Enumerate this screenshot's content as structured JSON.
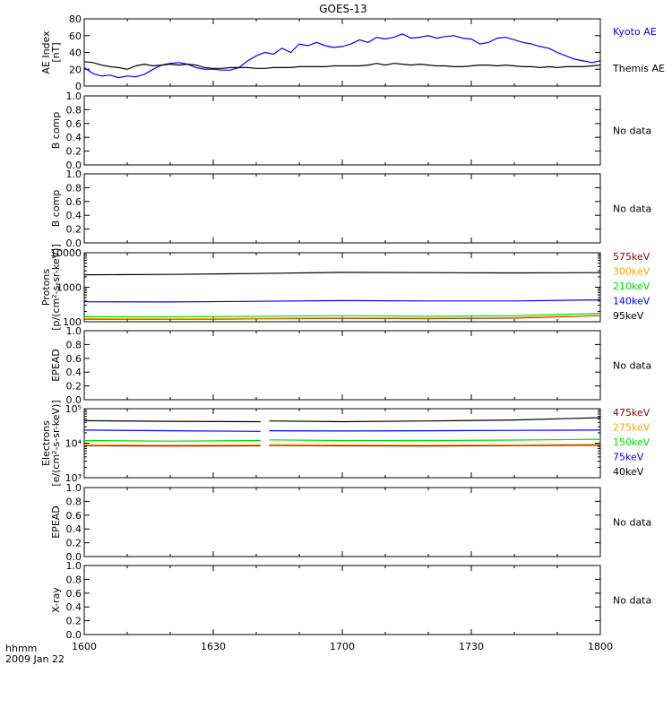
{
  "title": "GOES-13",
  "footer": {
    "label1": "hhmm",
    "label2": "2009 Jan 22"
  },
  "x_axis": {
    "ticks": [
      {
        "t": 0,
        "label": "1600"
      },
      {
        "t": 30,
        "label": "1630"
      },
      {
        "t": 60,
        "label": "1700"
      },
      {
        "t": 90,
        "label": "1730"
      },
      {
        "t": 120,
        "label": "1800"
      }
    ],
    "range_minutes": [
      0,
      120
    ]
  },
  "chart_data": [
    {
      "type": "line",
      "ylabel": [
        "AE Index",
        "[nT]"
      ],
      "ylim": [
        0,
        80
      ],
      "yticks": [
        0,
        20,
        40,
        60,
        80
      ],
      "ytick_labels": [
        "0",
        "20",
        "40",
        "60",
        "80"
      ],
      "x_minutes": [
        0,
        2,
        4,
        6,
        8,
        10,
        12,
        14,
        16,
        18,
        20,
        22,
        24,
        26,
        28,
        30,
        32,
        34,
        36,
        38,
        40,
        42,
        44,
        46,
        48,
        50,
        52,
        54,
        56,
        58,
        60,
        62,
        64,
        66,
        68,
        70,
        72,
        74,
        76,
        78,
        80,
        82,
        84,
        86,
        88,
        90,
        92,
        94,
        96,
        98,
        100,
        102,
        104,
        106,
        108,
        110,
        112,
        114,
        116,
        118,
        120
      ],
      "series": [
        {
          "name": "Kyoto AE",
          "color": "#0000ff",
          "values": [
            22,
            15,
            12,
            13,
            10,
            12,
            11,
            14,
            20,
            25,
            27,
            28,
            26,
            22,
            20,
            20,
            19,
            19,
            22,
            30,
            36,
            40,
            38,
            45,
            40,
            50,
            48,
            52,
            48,
            46,
            47,
            50,
            55,
            52,
            58,
            56,
            58,
            62,
            57,
            58,
            60,
            57,
            59,
            60,
            57,
            56,
            50,
            52,
            57,
            58,
            55,
            52,
            50,
            47,
            45,
            40,
            36,
            32,
            30,
            28,
            30
          ]
        },
        {
          "name": "Themis AE",
          "color": "#000000",
          "values": [
            29,
            28,
            25,
            23,
            22,
            20,
            24,
            26,
            24,
            25,
            26,
            25,
            26,
            25,
            22,
            21,
            21,
            22,
            22,
            22,
            21,
            21,
            22,
            22,
            22,
            23,
            23,
            23,
            23,
            24,
            24,
            24,
            24,
            25,
            27,
            25,
            27,
            26,
            25,
            26,
            25,
            24,
            24,
            23,
            23,
            24,
            25,
            25,
            24,
            25,
            24,
            23,
            23,
            22,
            23,
            22,
            23,
            23,
            23,
            24,
            25
          ]
        }
      ]
    },
    {
      "type": "line",
      "ylabel": [
        "B comp"
      ],
      "ylim": [
        0,
        1
      ],
      "yticks": [
        0,
        0.2,
        0.4,
        0.6,
        0.8,
        1.0
      ],
      "ytick_labels": [
        "0.0",
        "0.2",
        "0.4",
        "0.6",
        "0.8",
        "1.0"
      ],
      "series": [],
      "note": "No data"
    },
    {
      "type": "line",
      "ylabel": [
        "B comp"
      ],
      "ylim": [
        0,
        1
      ],
      "yticks": [
        0,
        0.2,
        0.4,
        0.6,
        0.8,
        1.0
      ],
      "ytick_labels": [
        "0.0",
        "0.2",
        "0.4",
        "0.6",
        "0.8",
        "1.0"
      ],
      "series": [],
      "note": "No data"
    },
    {
      "type": "line",
      "ylabel": [
        "Protons",
        "[p/(cm²-s-sr-keV)]"
      ],
      "log": true,
      "ylim": [
        100,
        10000
      ],
      "yticks": [
        100,
        1000,
        10000
      ],
      "ytick_labels": [
        "100",
        "1000",
        "10000"
      ],
      "x_minutes": [
        0,
        20,
        40,
        60,
        80,
        100,
        120
      ],
      "series": [
        {
          "name": "575keV",
          "color": "#8b0000",
          "values": [
            120,
            118,
            122,
            125,
            123,
            128,
            150
          ]
        },
        {
          "name": "300keV",
          "color": "#ffa500",
          "values": [
            125,
            122,
            126,
            130,
            128,
            133,
            155
          ]
        },
        {
          "name": "210keV",
          "color": "#00dd00",
          "values": [
            140,
            138,
            145,
            150,
            145,
            150,
            175
          ]
        },
        {
          "name": "140keV",
          "color": "#0000ff",
          "values": [
            380,
            375,
            390,
            410,
            400,
            400,
            430
          ]
        },
        {
          "name": "95keV",
          "color": "#000000",
          "values": [
            2300,
            2350,
            2500,
            2700,
            2650,
            2600,
            2650
          ]
        }
      ]
    },
    {
      "type": "line",
      "ylabel": [
        "EPEAD"
      ],
      "ylim": [
        0,
        1
      ],
      "yticks": [
        0,
        0.2,
        0.4,
        0.6,
        0.8,
        1.0
      ],
      "ytick_labels": [
        "0.0",
        "0.2",
        "0.4",
        "0.6",
        "0.8",
        "1.0"
      ],
      "series": [],
      "note": "No data"
    },
    {
      "type": "line",
      "ylabel": [
        "Electrons",
        "[e/(cm²-s-sr-keV)]"
      ],
      "log": true,
      "ylim": [
        1000,
        100000
      ],
      "yticks": [
        1000,
        10000,
        100000
      ],
      "ytick_labels": [
        "10³",
        "10⁴",
        "10⁵"
      ],
      "data_gap_minutes": [
        41,
        43
      ],
      "x_minutes": [
        0,
        20,
        41,
        43,
        60,
        80,
        100,
        120
      ],
      "series": [
        {
          "name": "475keV",
          "color": "#8b0000",
          "values": [
            8500,
            8300,
            8400,
            8600,
            8400,
            8300,
            8500,
            8700
          ]
        },
        {
          "name": "275keV",
          "color": "#ffa500",
          "values": [
            9000,
            8800,
            8900,
            9100,
            8900,
            8800,
            9000,
            9300
          ]
        },
        {
          "name": "150keV",
          "color": "#00dd00",
          "values": [
            12000,
            11500,
            12000,
            12500,
            12000,
            12000,
            12300,
            13000
          ]
        },
        {
          "name": "75keV",
          "color": "#0000ff",
          "values": [
            24000,
            23000,
            22000,
            23000,
            22500,
            23000,
            23500,
            24000
          ]
        },
        {
          "name": "40keV",
          "color": "#000000",
          "values": [
            45000,
            43000,
            42000,
            44000,
            42000,
            44000,
            47000,
            55000
          ]
        }
      ]
    },
    {
      "type": "line",
      "ylabel": [
        "EPEAD"
      ],
      "ylim": [
        0,
        1
      ],
      "yticks": [
        0,
        0.2,
        0.4,
        0.6,
        0.8,
        1.0
      ],
      "ytick_labels": [
        "0.0",
        "0.2",
        "0.4",
        "0.6",
        "0.8",
        "1.0"
      ],
      "series": [],
      "note": "No data"
    },
    {
      "type": "line",
      "ylabel": [
        "X-ray"
      ],
      "ylim": [
        0,
        1
      ],
      "yticks": [
        0,
        0.2,
        0.4,
        0.6,
        0.8,
        1.0
      ],
      "ytick_labels": [
        "0.0",
        "0.2",
        "0.4",
        "0.6",
        "0.8",
        "1.0"
      ],
      "series": [],
      "note": "No data"
    }
  ]
}
